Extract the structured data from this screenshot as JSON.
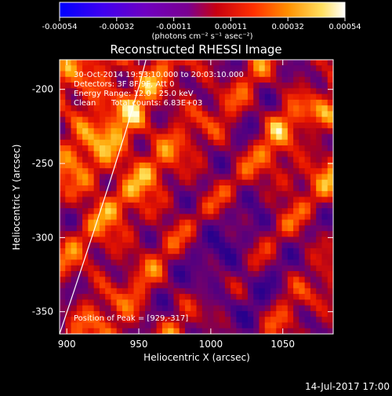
{
  "colorbar": {
    "ticks": [
      "-0.00054",
      "-0.00032",
      "-0.00011",
      "0.00011",
      "0.00032",
      "0.00054"
    ],
    "units": "(photons cm⁻² s⁻¹ asec⁻²)"
  },
  "info": {
    "time_range": "30-Oct-2014 19:53:10.000 to 20:03:10.000",
    "detectors": "Detectors: 3F 8F 9F, Att 0",
    "energy": "Energy Range: 12.0 - 25.0 keV",
    "method": "Clean",
    "total_counts": "Total counts: 6.83E+03",
    "peak": "Position of Peak = [929,-317]"
  },
  "footer": {
    "timestamp": "14-Jul-2017 17:00"
  },
  "colors": {
    "background": "#000000",
    "text": "#ffffff",
    "limb_curve": "#ffffff"
  },
  "chart_data": {
    "type": "heatmap",
    "title": "Reconstructed RHESSI Image",
    "xlabel": "Heliocentric X (arcsec)",
    "ylabel": "Heliocentric Y (arcsec)",
    "xlim": [
      895,
      1085
    ],
    "ylim": [
      -365,
      -180
    ],
    "x_ticks": [
      900,
      950,
      1000,
      1050
    ],
    "y_ticks": [
      -200,
      -250,
      -300,
      -350
    ],
    "colorbar_range": [
      -0.00054,
      0.00054
    ],
    "colormap": "blue-purple-red-yellow-white",
    "limb_curve": [
      [
        895,
        -365
      ],
      [
        905,
        -336
      ],
      [
        918,
        -298
      ],
      [
        930,
        -262
      ],
      [
        941,
        -228
      ],
      [
        951,
        -195
      ],
      [
        955,
        -180
      ]
    ]
  }
}
